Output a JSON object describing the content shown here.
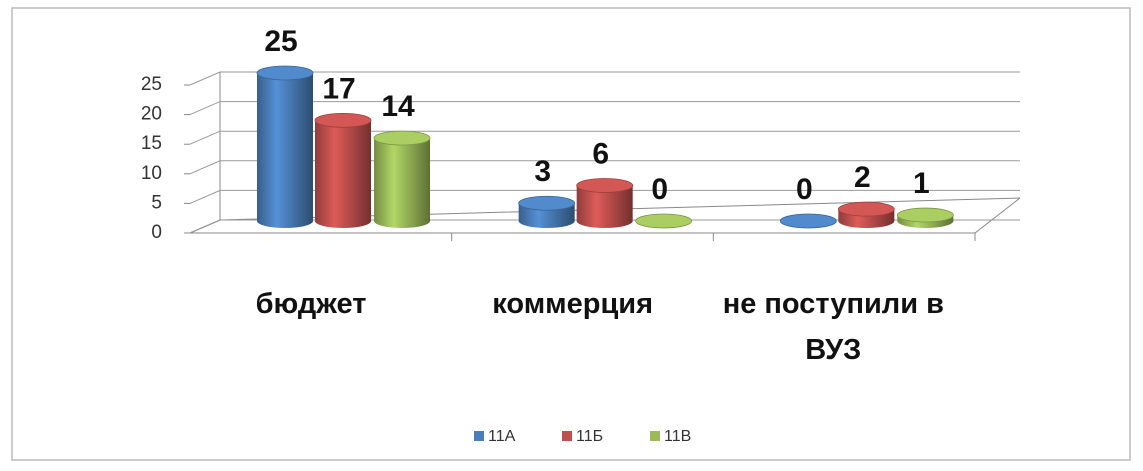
{
  "chart_data": {
    "type": "bar3d",
    "categories": [
      "бюджет",
      "коммерция",
      "не поступили в ВУЗ"
    ],
    "series": [
      {
        "name": "11А",
        "color": "#4a7ebb",
        "values": [
          25,
          3,
          0
        ]
      },
      {
        "name": "11Б",
        "color": "#c0504d",
        "values": [
          17,
          6,
          2
        ]
      },
      {
        "name": "11В",
        "color": "#9bbb59",
        "values": [
          14,
          0,
          1
        ]
      }
    ],
    "ylim": [
      0,
      25
    ],
    "yticks": [
      0,
      5,
      10,
      15,
      20,
      25
    ],
    "grid": true,
    "legend": "bottom"
  }
}
